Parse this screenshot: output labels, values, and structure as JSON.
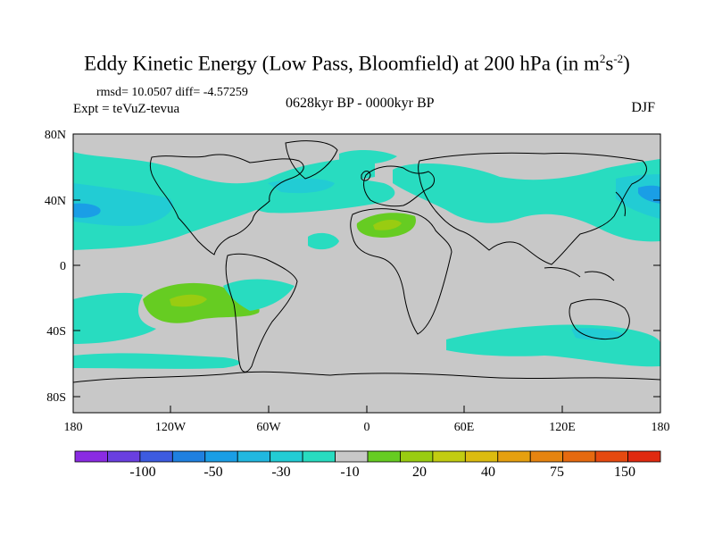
{
  "title": {
    "main": "Eddy Kinetic Energy (Low Pass, Bloomfield) at 200 hPa (in m",
    "sup1": "2",
    "mid": "s",
    "sup2": "-2",
    "end": ")"
  },
  "stats": "rmsd= 10.0507 diff= -4.57259",
  "expt": "Expt = teVuZ-tevua",
  "period": "0628kyr BP - 0000kyr BP",
  "season": "DJF",
  "axes": {
    "lat_labels": [
      "80N",
      "40N",
      "0",
      "40S",
      "80S"
    ],
    "lon_labels": [
      "180",
      "120W",
      "60W",
      "0",
      "60E",
      "120E",
      "180"
    ]
  },
  "colorbar": {
    "colors": [
      "#8a2be2",
      "#6a3fe0",
      "#3d5be0",
      "#1f80e0",
      "#1a9ee6",
      "#21b8e0",
      "#22ccd4",
      "#28dcc0",
      "#c8c8c8",
      "#66cc22",
      "#99cc11",
      "#c2cc11",
      "#dcbc10",
      "#e6a010",
      "#e68410",
      "#e66a10",
      "#e64a10",
      "#e02a10"
    ],
    "labels": [
      "-100",
      "-50",
      "-30",
      "-10",
      "20",
      "40",
      "75",
      "150"
    ]
  },
  "map_colors": {
    "land_ocean": "#c8c8c8",
    "neg_light": "#28dcc0",
    "neg_mid": "#22ccd4",
    "pos_light": "#66cc22",
    "pos_mid": "#99cc11"
  }
}
